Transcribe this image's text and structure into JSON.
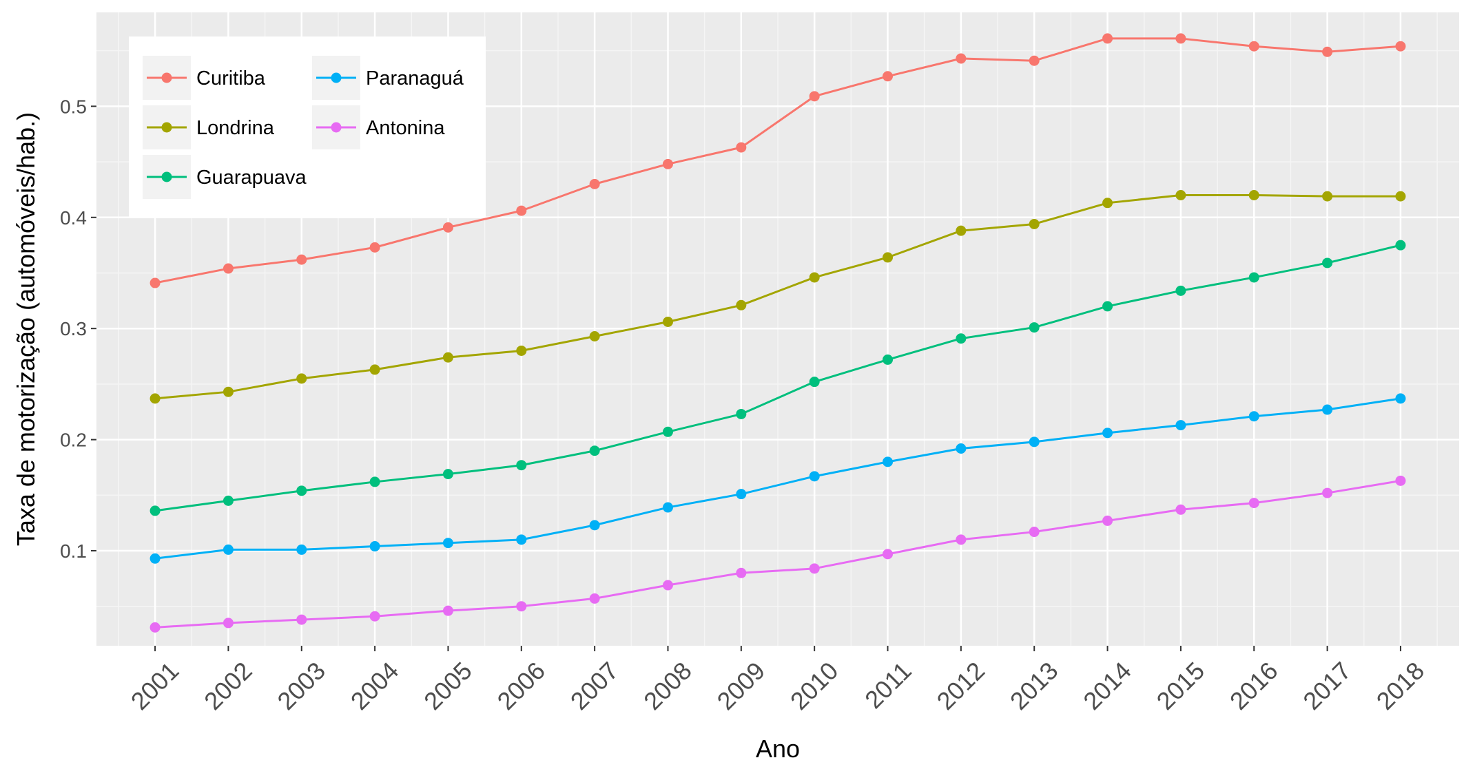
{
  "chart_data": {
    "type": "line",
    "xlabel": "Ano",
    "ylabel": "Taxa de motorização (automóveis/hab.)",
    "x": [
      2001,
      2002,
      2003,
      2004,
      2005,
      2006,
      2007,
      2008,
      2009,
      2010,
      2011,
      2012,
      2013,
      2014,
      2015,
      2016,
      2017,
      2018
    ],
    "xlim": [
      2000.2,
      2018.8
    ],
    "ylim": [
      0.0145,
      0.5845
    ],
    "y_ticks": [
      0.1,
      0.2,
      0.3,
      0.4,
      0.5
    ],
    "y_tick_labels": [
      "0.1",
      "0.2",
      "0.3",
      "0.4",
      "0.5"
    ],
    "x_tick_labels": [
      "2001",
      "2002",
      "2003",
      "2004",
      "2005",
      "2006",
      "2007",
      "2008",
      "2009",
      "2010",
      "2011",
      "2012",
      "2013",
      "2014",
      "2015",
      "2016",
      "2017",
      "2018"
    ],
    "grid": true,
    "legend_position": "top-left",
    "series": [
      {
        "name": "Curitiba",
        "color": "#F8766D",
        "values": [
          0.341,
          0.354,
          0.362,
          0.373,
          0.391,
          0.406,
          0.43,
          0.448,
          0.463,
          0.509,
          0.527,
          0.543,
          0.541,
          0.561,
          0.561,
          0.554,
          0.549,
          0.554
        ]
      },
      {
        "name": "Londrina",
        "color": "#A3A500",
        "values": [
          0.237,
          0.243,
          0.255,
          0.263,
          0.274,
          0.28,
          0.293,
          0.306,
          0.321,
          0.346,
          0.364,
          0.388,
          0.394,
          0.413,
          0.42,
          0.42,
          0.419,
          0.419
        ]
      },
      {
        "name": "Guarapuava",
        "color": "#00BF7D",
        "values": [
          0.136,
          0.145,
          0.154,
          0.162,
          0.169,
          0.177,
          0.19,
          0.207,
          0.223,
          0.252,
          0.272,
          0.291,
          0.301,
          0.32,
          0.334,
          0.346,
          0.359,
          0.375
        ]
      },
      {
        "name": "Paranaguá",
        "color": "#00B0F6",
        "values": [
          0.093,
          0.101,
          0.101,
          0.104,
          0.107,
          0.11,
          0.123,
          0.139,
          0.151,
          0.167,
          0.18,
          0.192,
          0.198,
          0.206,
          0.213,
          0.221,
          0.227,
          0.237
        ]
      },
      {
        "name": "Antonina",
        "color": "#E76BF3",
        "values": [
          0.031,
          0.035,
          0.038,
          0.041,
          0.046,
          0.05,
          0.057,
          0.069,
          0.08,
          0.084,
          0.097,
          0.11,
          0.117,
          0.127,
          0.137,
          0.143,
          0.152,
          0.163
        ]
      }
    ]
  }
}
